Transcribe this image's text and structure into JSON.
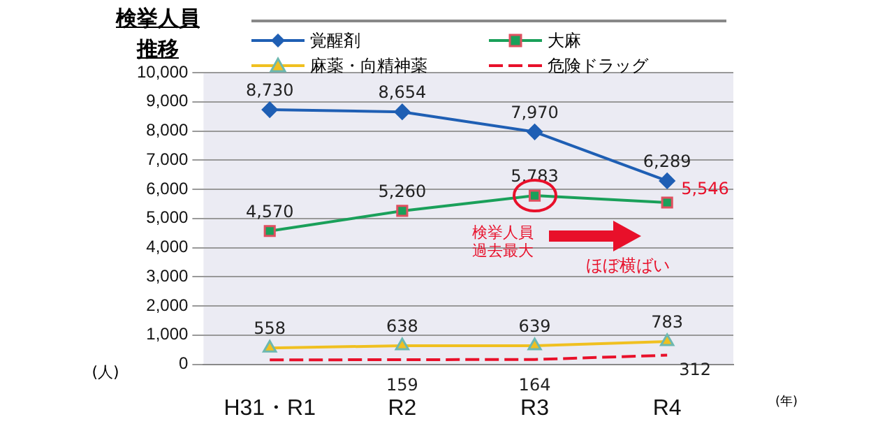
{
  "chart_data": {
    "type": "line",
    "title": "検挙人員推移",
    "xlabel": "(年)",
    "ylabel": "(人)",
    "categories": [
      "H31・R1",
      "R2",
      "R3",
      "R4"
    ],
    "ylim": [
      0,
      10000
    ],
    "yticks": [
      {
        "value": 0,
        "label": "0"
      },
      {
        "value": 1000,
        "label": "1,000"
      },
      {
        "value": 2000,
        "label": "2,000"
      },
      {
        "value": 3000,
        "label": "3,000"
      },
      {
        "value": 4000,
        "label": "4,000"
      },
      {
        "value": 5000,
        "label": "5,000"
      },
      {
        "value": 6000,
        "label": "6,000"
      },
      {
        "value": 7000,
        "label": "7,000"
      },
      {
        "value": 8000,
        "label": "8,000"
      },
      {
        "value": 9000,
        "label": "9,000"
      },
      {
        "value": 10000,
        "label": "10,000"
      }
    ],
    "grid": "y",
    "legend": "top",
    "series": [
      {
        "name": "覚醒剤",
        "color": "#1f5fb4",
        "marker": "diamond",
        "values": [
          8730,
          8654,
          7970,
          6289
        ],
        "value_labels": [
          "8,730",
          "8,654",
          "7,970",
          "6,289"
        ]
      },
      {
        "name": "大麻",
        "color": "#1aa05a",
        "marker": "square",
        "values": [
          4570,
          5260,
          5783,
          5546
        ],
        "value_labels": [
          "4,570",
          "5,260",
          "5,783",
          "5,546"
        ]
      },
      {
        "name": "麻薬・向精神薬",
        "color": "#f0c020",
        "marker": "triangle",
        "values": [
          558,
          638,
          639,
          783
        ],
        "value_labels": [
          "558",
          "638",
          "639",
          "783"
        ]
      },
      {
        "name": "危険ドラッグ",
        "color": "#e8102a",
        "marker": "none",
        "line_style": "dashed",
        "values": [
          150,
          159,
          164,
          312
        ],
        "value_labels": [
          null,
          "159",
          "164",
          "312"
        ]
      }
    ],
    "annotations": [
      {
        "text": "検挙人員過去最大",
        "x": "R3",
        "y": 5783
      },
      "ほぼ横ばい"
    ]
  }
}
